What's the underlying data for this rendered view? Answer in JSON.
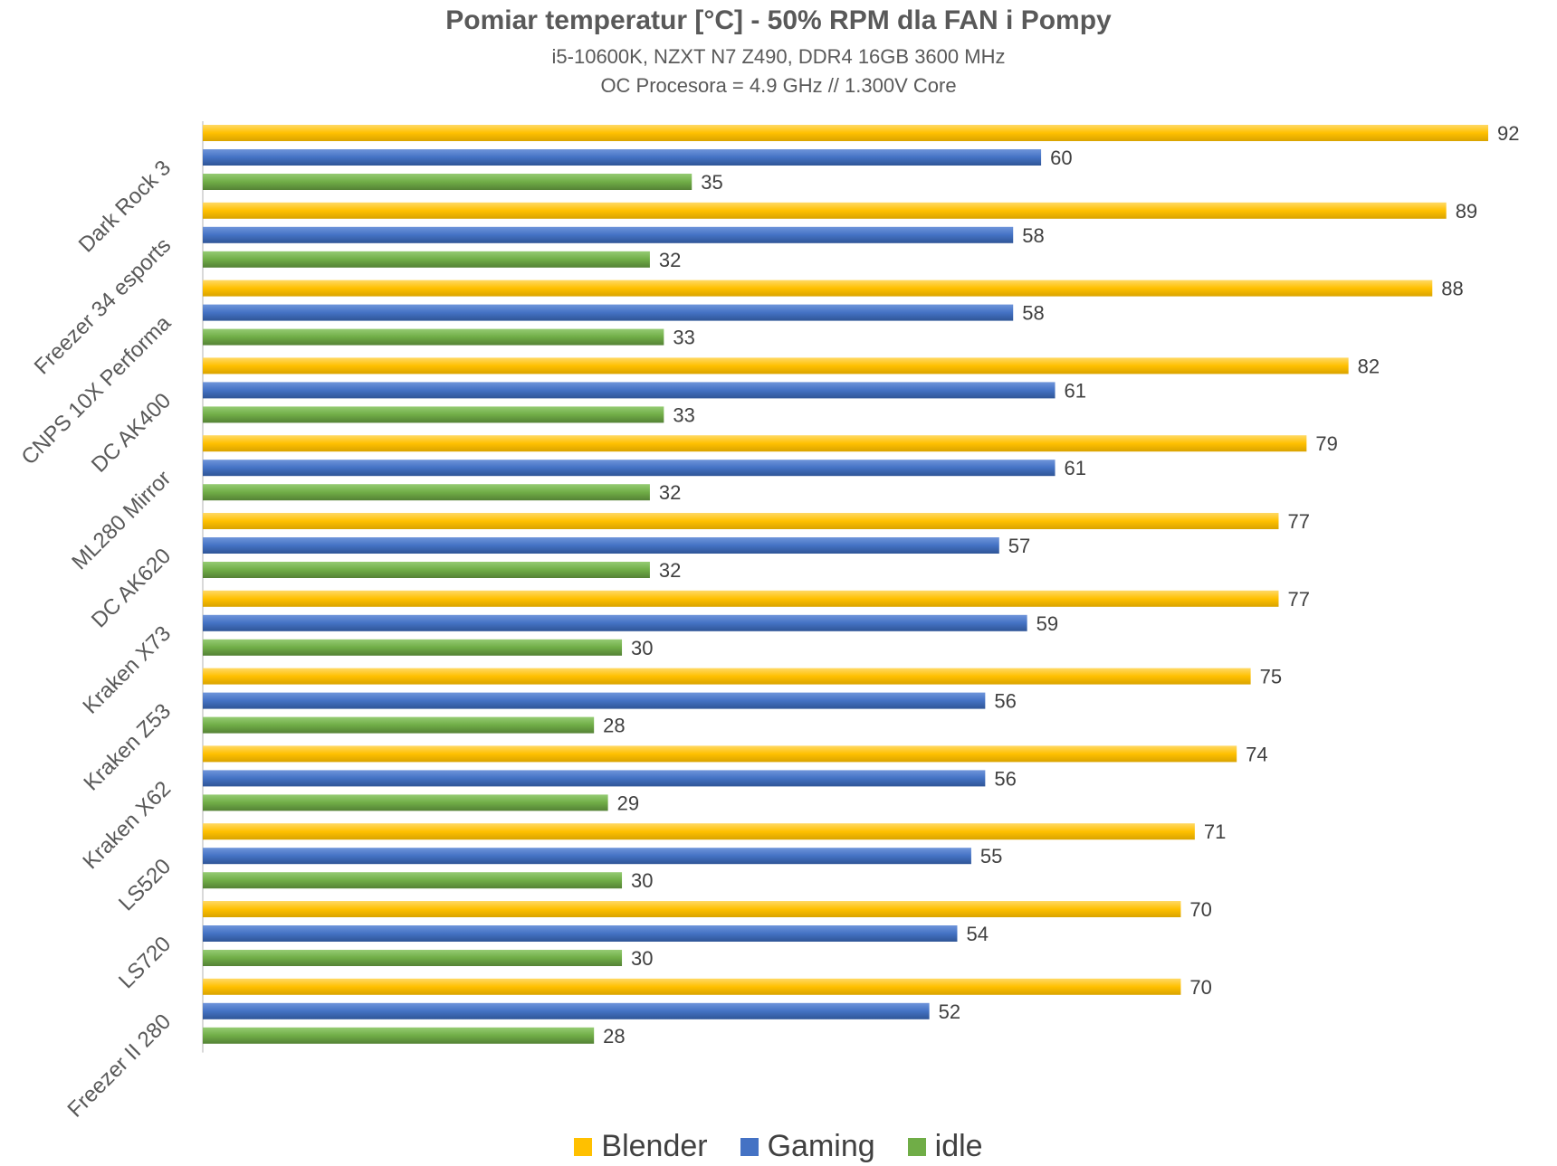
{
  "chart_data": {
    "type": "bar",
    "orientation": "horizontal",
    "title": "Pomiar temperatur [°C] - 50% RPM dla FAN i Pompy",
    "subtitle_lines": [
      "i5-10600K, NZXT N7 Z490, DDR4 16GB 3600 MHz",
      "OC Procesora = 4.9 GHz // 1.300V Core"
    ],
    "categories": [
      "Dark Rock 3",
      "Freezer 34 esports",
      "CNPS 10X Performa",
      "DC AK400",
      "ML280 Mirror",
      "DC AK620",
      "Kraken X73",
      "Kraken Z53",
      "Kraken X62",
      "LS520",
      "LS720",
      "Freezer II 280"
    ],
    "series": [
      {
        "name": "Blender",
        "color": "#FFC000",
        "values": [
          92,
          89,
          88,
          82,
          79,
          77,
          77,
          75,
          74,
          71,
          70,
          70
        ]
      },
      {
        "name": "Gaming",
        "color": "#4472C4",
        "values": [
          60,
          58,
          58,
          61,
          61,
          57,
          59,
          56,
          56,
          55,
          54,
          52
        ]
      },
      {
        "name": "idle",
        "color": "#70AD47",
        "values": [
          35,
          32,
          33,
          33,
          32,
          32,
          30,
          28,
          29,
          30,
          30,
          28
        ]
      }
    ],
    "xlim": [
      0,
      92
    ],
    "grid": false,
    "legend_position": "bottom"
  }
}
